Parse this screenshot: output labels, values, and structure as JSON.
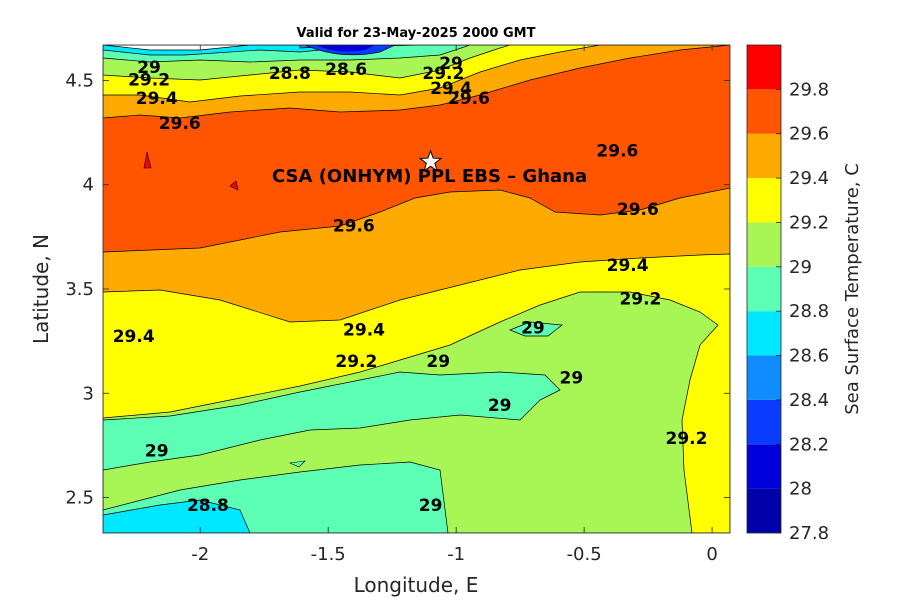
{
  "chart_data": {
    "type": "contour",
    "title": "Valid for 23-May-2025 2000 GMT",
    "xlabel": "Longitude, E",
    "ylabel": "Latitude, N",
    "colorbar_label": "Sea Surface Temperature, C",
    "xlim": [
      -2.38,
      0.07
    ],
    "ylim": [
      2.33,
      4.67
    ],
    "xticks": [
      -2,
      -1.5,
      -1,
      -0.5,
      0
    ],
    "xtick_labels": [
      "-2",
      "-1.5",
      "-1",
      "-0.5",
      "0"
    ],
    "yticks": [
      2.5,
      3,
      3.5,
      4,
      4.5
    ],
    "ytick_labels": [
      "2.5",
      "3",
      "3.5",
      "4",
      "4.5"
    ],
    "colorbar": {
      "range": [
        27.8,
        30.0
      ],
      "levels": [
        27.8,
        28.0,
        28.2,
        28.4,
        28.6,
        28.8,
        29.0,
        29.2,
        29.4,
        29.6,
        29.8,
        30.0
      ],
      "colors": [
        "#0000aa",
        "#0000dd",
        "#0a3cff",
        "#0f8cff",
        "#00e8ff",
        "#5cffb4",
        "#a8f556",
        "#ffff00",
        "#ffaa00",
        "#ff5500",
        "#ff0000"
      ],
      "tick_values": [
        27.8,
        28,
        28.2,
        28.4,
        28.6,
        28.8,
        29,
        29.2,
        29.4,
        29.6,
        29.8
      ],
      "tick_labels": [
        "27.8",
        "28",
        "28.2",
        "28.4",
        "28.6",
        "28.8",
        "29",
        "29.2",
        "29.4",
        "29.6",
        "29.8"
      ]
    },
    "contour_labels": [
      {
        "text": "29",
        "lon": -2.2,
        "lat": 4.56
      },
      {
        "text": "29.2",
        "lon": -2.2,
        "lat": 4.5
      },
      {
        "text": "29.4",
        "lon": -2.17,
        "lat": 4.41
      },
      {
        "text": "29.6",
        "lon": -2.08,
        "lat": 4.29
      },
      {
        "text": "28.8",
        "lon": -1.65,
        "lat": 4.53
      },
      {
        "text": "28.6",
        "lon": -1.43,
        "lat": 4.55
      },
      {
        "text": "29",
        "lon": -1.02,
        "lat": 4.58
      },
      {
        "text": "29.2",
        "lon": -1.05,
        "lat": 4.53
      },
      {
        "text": "29.4",
        "lon": -1.02,
        "lat": 4.46
      },
      {
        "text": "29.6",
        "lon": -0.95,
        "lat": 4.41
      },
      {
        "text": "29.6",
        "lon": -0.37,
        "lat": 4.16
      },
      {
        "text": "29.6",
        "lon": -0.29,
        "lat": 3.88
      },
      {
        "text": "29.6",
        "lon": -1.4,
        "lat": 3.8
      },
      {
        "text": "29.4",
        "lon": -0.33,
        "lat": 3.61
      },
      {
        "text": "29.2",
        "lon": -0.28,
        "lat": 3.45
      },
      {
        "text": "29.4",
        "lon": -2.26,
        "lat": 3.27
      },
      {
        "text": "29.4",
        "lon": -1.36,
        "lat": 3.3
      },
      {
        "text": "29.2",
        "lon": -1.39,
        "lat": 3.15
      },
      {
        "text": "29",
        "lon": -1.07,
        "lat": 3.15
      },
      {
        "text": "29",
        "lon": -0.7,
        "lat": 3.31
      },
      {
        "text": "29",
        "lon": -0.55,
        "lat": 3.07
      },
      {
        "text": "29",
        "lon": -0.83,
        "lat": 2.94
      },
      {
        "text": "29.2",
        "lon": -0.1,
        "lat": 2.78
      },
      {
        "text": "29",
        "lon": -2.17,
        "lat": 2.72
      },
      {
        "text": "28.8",
        "lon": -1.97,
        "lat": 2.46
      },
      {
        "text": "29",
        "lon": -1.1,
        "lat": 2.46
      }
    ],
    "site": {
      "label": "CSA (ONHYM) PPL EBS  – Ghana",
      "lon": -1.1,
      "lat": 4.11
    }
  }
}
